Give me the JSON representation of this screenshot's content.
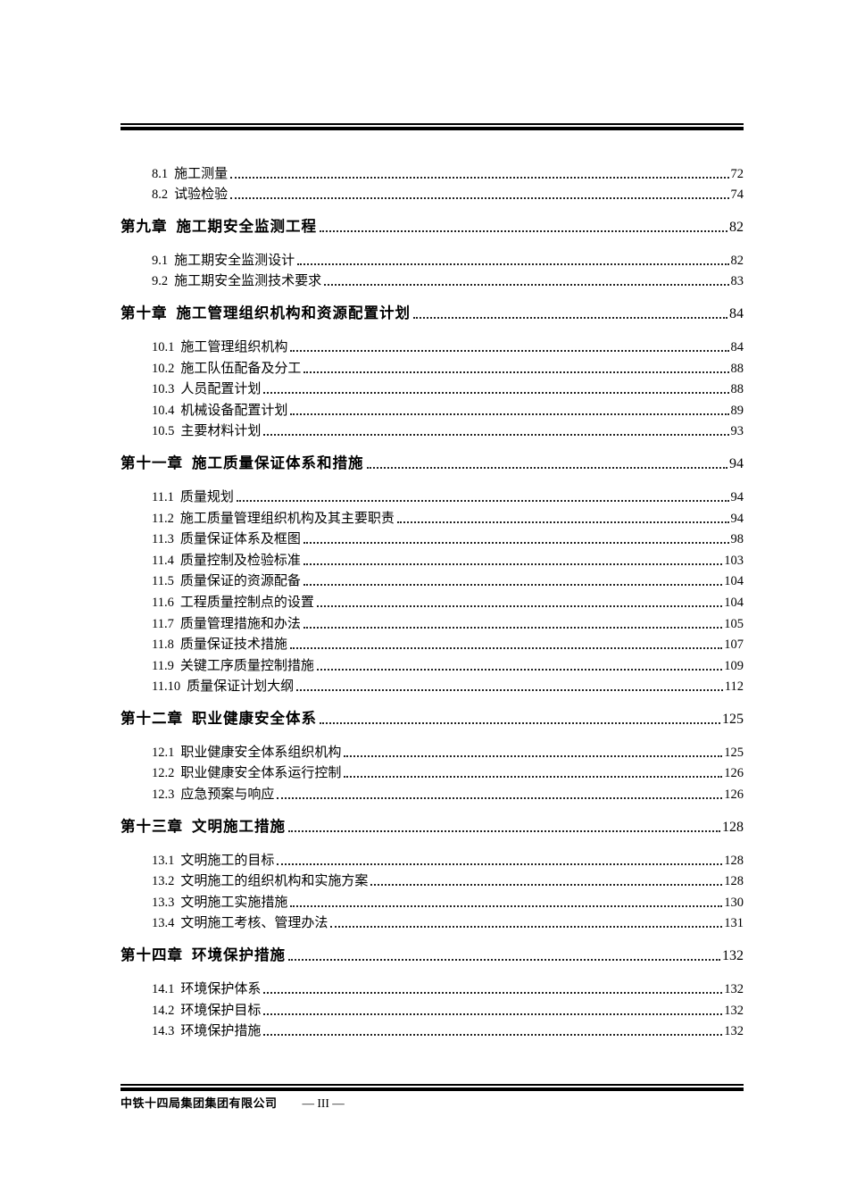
{
  "document": {
    "footer": {
      "company": "中铁十四局集团集团有限公司",
      "page_label": "— III —"
    },
    "toc_entries": [
      {
        "type": "sub",
        "num": "8.1",
        "title": "施工测量",
        "page": "72"
      },
      {
        "type": "sub",
        "num": "8.2",
        "title": "试验检验",
        "page": "74"
      },
      {
        "type": "chapter",
        "num": "第九章",
        "title": "施工期安全监测工程",
        "page": "82"
      },
      {
        "type": "sub",
        "num": "9.1",
        "title": "施工期安全监测设计",
        "page": "82"
      },
      {
        "type": "sub",
        "num": "9.2",
        "title": "施工期安全监测技术要求",
        "page": "83"
      },
      {
        "type": "chapter",
        "num": "第十章",
        "title": "施工管理组织机构和资源配置计划",
        "page": "84"
      },
      {
        "type": "sub",
        "num": "10.1",
        "title": "施工管理组织机构",
        "page": "84"
      },
      {
        "type": "sub",
        "num": "10.2",
        "title": "施工队伍配备及分工",
        "page": "88"
      },
      {
        "type": "sub",
        "num": "10.3",
        "title": "人员配置计划",
        "page": "88"
      },
      {
        "type": "sub",
        "num": "10.4",
        "title": "机械设备配置计划",
        "page": "89"
      },
      {
        "type": "sub",
        "num": "10.5",
        "title": "主要材料计划",
        "page": "93"
      },
      {
        "type": "chapter",
        "num": "第十一章",
        "title": "施工质量保证体系和措施",
        "page": "94"
      },
      {
        "type": "sub",
        "num": "11.1",
        "title": "质量规划",
        "page": "94"
      },
      {
        "type": "sub",
        "num": "11.2",
        "title": "施工质量管理组织机构及其主要职责",
        "page": "94"
      },
      {
        "type": "sub",
        "num": "11.3",
        "title": "质量保证体系及框图",
        "page": "98"
      },
      {
        "type": "sub",
        "num": "11.4",
        "title": "质量控制及检验标准",
        "page": "103"
      },
      {
        "type": "sub",
        "num": "11.5",
        "title": "质量保证的资源配备",
        "page": "104"
      },
      {
        "type": "sub",
        "num": "11.6",
        "title": "工程质量控制点的设置",
        "page": "104"
      },
      {
        "type": "sub",
        "num": "11.7",
        "title": "质量管理措施和办法",
        "page": "105"
      },
      {
        "type": "sub",
        "num": "11.8",
        "title": "质量保证技术措施",
        "page": "107"
      },
      {
        "type": "sub",
        "num": "11.9",
        "title": "关键工序质量控制措施",
        "page": "109"
      },
      {
        "type": "sub",
        "num": "11.10",
        "title": "质量保证计划大纲",
        "page": "112"
      },
      {
        "type": "chapter",
        "num": "第十二章",
        "title": "职业健康安全体系",
        "page": "125"
      },
      {
        "type": "sub",
        "num": "12.1",
        "title": "职业健康安全体系组织机构",
        "page": "125"
      },
      {
        "type": "sub",
        "num": "12.2",
        "title": "职业健康安全体系运行控制",
        "page": "126"
      },
      {
        "type": "sub",
        "num": "12.3",
        "title": "应急预案与响应",
        "page": "126"
      },
      {
        "type": "chapter",
        "num": "第十三章",
        "title": "文明施工措施",
        "page": "128"
      },
      {
        "type": "sub",
        "num": "13.1",
        "title": "文明施工的目标",
        "page": "128"
      },
      {
        "type": "sub",
        "num": "13.2",
        "title": "文明施工的组织机构和实施方案",
        "page": "128"
      },
      {
        "type": "sub",
        "num": "13.3",
        "title": "文明施工实施措施",
        "page": "130"
      },
      {
        "type": "sub",
        "num": "13.4",
        "title": "文明施工考核、管理办法",
        "page": "131"
      },
      {
        "type": "chapter",
        "num": "第十四章",
        "title": "环境保护措施",
        "page": "132"
      },
      {
        "type": "sub",
        "num": "14.1",
        "title": "环境保护体系",
        "page": "132"
      },
      {
        "type": "sub",
        "num": "14.2",
        "title": "环境保护目标",
        "page": "132"
      },
      {
        "type": "sub",
        "num": "14.3",
        "title": "环境保护措施",
        "page": "132"
      }
    ]
  }
}
